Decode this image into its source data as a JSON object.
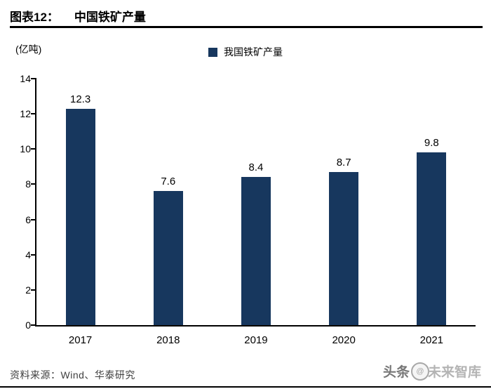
{
  "header": {
    "title_prefix": "图表12：",
    "title": "中国铁矿产量"
  },
  "chart_data": {
    "type": "bar",
    "title": "中国铁矿产量",
    "unit_label": "(亿吨)",
    "legend": "我国铁矿产量",
    "categories": [
      "2017",
      "2018",
      "2019",
      "2020",
      "2021"
    ],
    "values": [
      12.3,
      7.6,
      8.4,
      8.7,
      9.8
    ],
    "ylim": [
      0,
      14
    ],
    "yticks": [
      0,
      2,
      4,
      6,
      8,
      10,
      12,
      14
    ],
    "grid": "off",
    "legend_position": "top-center",
    "bar_color": "#17375e"
  },
  "footer": {
    "source": "资料来源：Wind、华泰研究",
    "watermark_left": "头条",
    "watermark_logo": "@",
    "watermark_right": "未来智库"
  }
}
